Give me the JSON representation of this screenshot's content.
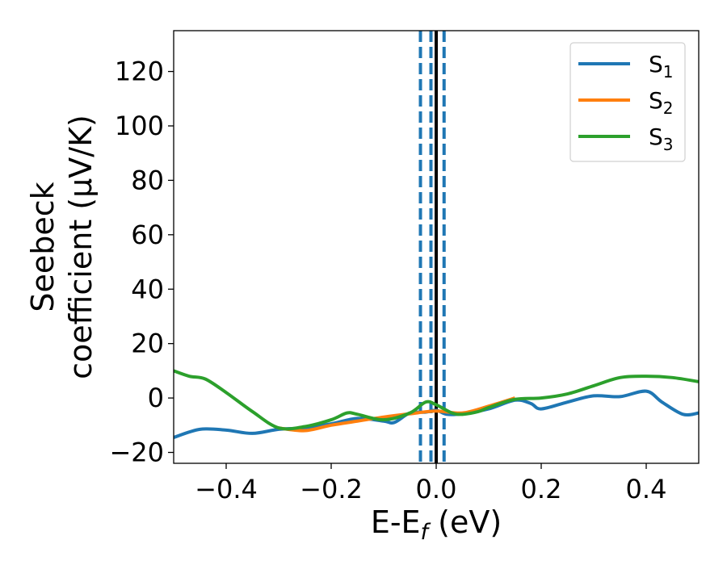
{
  "chart_data": {
    "type": "line",
    "xlabel": {
      "base": "E-E",
      "sub": "f",
      "suffix": " (eV)"
    },
    "ylabel": {
      "line1": "Seebeck",
      "line2": "coefficient  (μV/K)"
    },
    "xlim": [
      -0.5,
      0.5
    ],
    "ylim": [
      -24,
      135
    ],
    "xticks": [
      -0.4,
      -0.2,
      0.0,
      0.2,
      0.4
    ],
    "xtick_labels": [
      "−0.4",
      "−0.2",
      "0.0",
      "0.2",
      "0.4"
    ],
    "yticks": [
      -20,
      0,
      20,
      40,
      60,
      80,
      100,
      120
    ],
    "ytick_labels": [
      "−20",
      "0",
      "20",
      "40",
      "60",
      "80",
      "100",
      "120"
    ],
    "grid": false,
    "legend_position": "top-right",
    "series": [
      {
        "name": "S1",
        "name_base": "S",
        "name_sub": "1",
        "color": "#1f77b4",
        "x": [
          -0.5,
          -0.45,
          -0.4,
          -0.35,
          -0.3,
          -0.25,
          -0.2,
          -0.15,
          -0.1,
          -0.08,
          -0.05,
          -0.02,
          0.0,
          0.02,
          0.05,
          0.1,
          0.15,
          0.18,
          0.2,
          0.25,
          0.3,
          0.35,
          0.4,
          0.43,
          0.47,
          0.5
        ],
        "y": [
          -14.5,
          -11.5,
          -11.8,
          -13,
          -11.5,
          -11,
          -9.5,
          -7.5,
          -8.5,
          -9,
          -5.5,
          -5.2,
          -4.5,
          -6,
          -5.8,
          -4,
          -0.8,
          -2,
          -4,
          -1.5,
          0.8,
          0.5,
          2.5,
          -1.5,
          -6,
          -5.5
        ]
      },
      {
        "name": "S2",
        "name_base": "S",
        "name_sub": "2",
        "color": "#ff7f0e",
        "x": [
          -0.3,
          -0.25,
          -0.2,
          -0.15,
          -0.1,
          -0.05,
          0.0,
          0.05,
          0.1,
          0.15
        ],
        "y": [
          -11,
          -12,
          -10,
          -8.5,
          -7,
          -5.8,
          -4.8,
          -5.5,
          -3,
          0
        ]
      },
      {
        "name": "S3",
        "name_base": "S",
        "name_sub": "3",
        "color": "#2ca02c",
        "x": [
          -0.5,
          -0.47,
          -0.44,
          -0.4,
          -0.35,
          -0.3,
          -0.25,
          -0.2,
          -0.17,
          -0.15,
          -0.1,
          -0.05,
          -0.02,
          0.0,
          0.03,
          0.05,
          0.08,
          0.1,
          0.15,
          0.2,
          0.25,
          0.3,
          0.35,
          0.4,
          0.45,
          0.5
        ],
        "y": [
          10,
          8,
          7,
          2,
          -5,
          -11,
          -10.5,
          -8,
          -5.5,
          -6,
          -8,
          -5.5,
          -1.5,
          -2.5,
          -5.5,
          -6,
          -5,
          -3.5,
          -0.5,
          0,
          1.5,
          4.5,
          7.5,
          8,
          7.5,
          6
        ]
      }
    ],
    "vertical_lines": [
      {
        "x": 0.0,
        "style": "solid",
        "color": "#000000"
      },
      {
        "x": -0.03,
        "style": "dashed",
        "color": "#1f77b4"
      },
      {
        "x": -0.01,
        "style": "dashed",
        "color": "#1f77b4"
      },
      {
        "x": 0.015,
        "style": "dashed",
        "color": "#1f77b4"
      }
    ]
  }
}
